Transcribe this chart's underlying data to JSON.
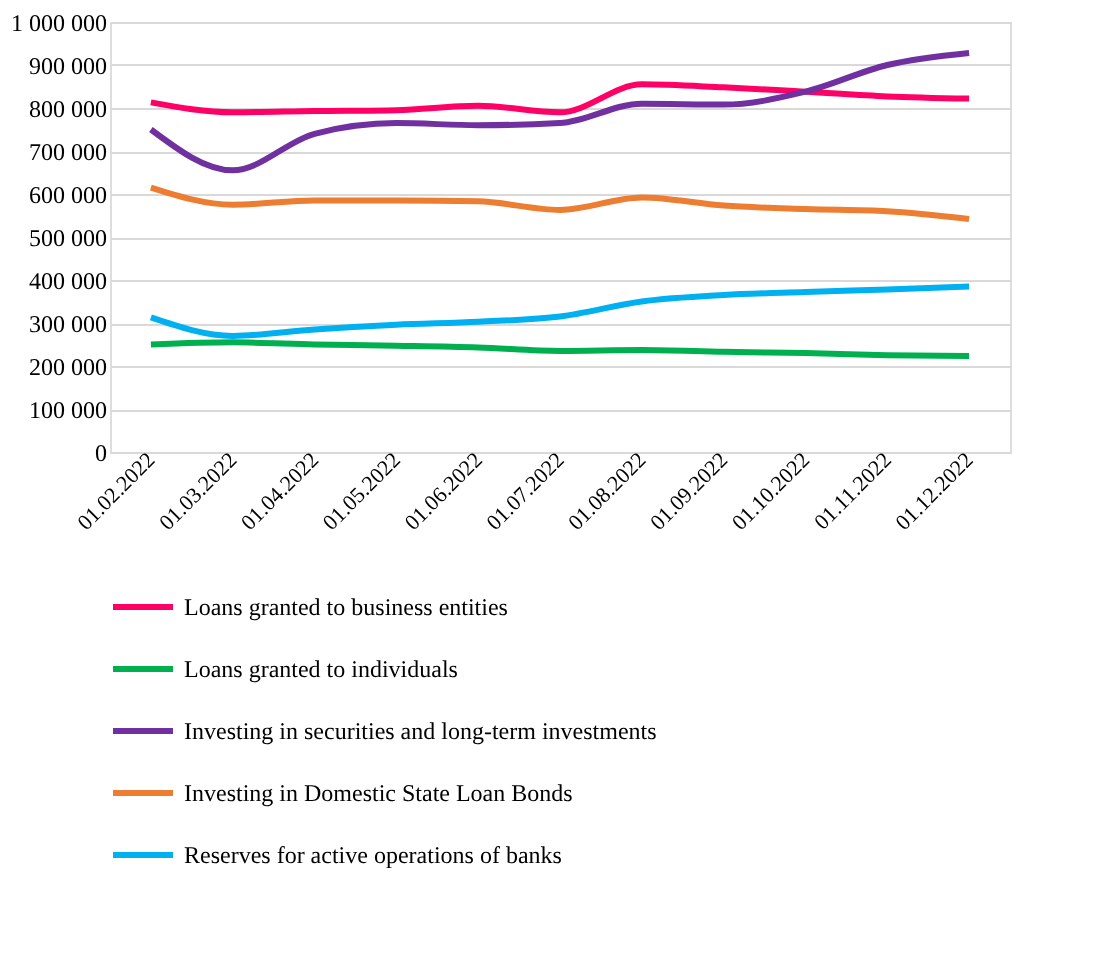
{
  "chart_data": {
    "type": "line",
    "categories": [
      "01.02.2022",
      "01.03.2022",
      "01.04.2022",
      "01.05.2022",
      "01.06.2022",
      "01.07.2022",
      "01.08.2022",
      "01.09.2022",
      "01.10.2022",
      "01.11.2022",
      "01.12.2022"
    ],
    "series": [
      {
        "name": "Loans granted to business entities",
        "color": "#ff0066",
        "values": [
          813000,
          790000,
          793000,
          795000,
          805000,
          790000,
          855000,
          848000,
          838000,
          827000,
          822000
        ]
      },
      {
        "name": "Loans granted to individuals",
        "color": "#00b050",
        "values": [
          250000,
          255000,
          250000,
          247000,
          243000,
          235000,
          237000,
          233000,
          230000,
          225000,
          223000
        ]
      },
      {
        "name": "Investing in securities and long-term investments",
        "color": "#7030a0",
        "values": [
          750000,
          655000,
          740000,
          765000,
          760000,
          765000,
          810000,
          808000,
          838000,
          900000,
          928000
        ]
      },
      {
        "name": "Investing in Domestic State Loan Bonds",
        "color": "#ed7d31",
        "values": [
          615000,
          575000,
          585000,
          585000,
          583000,
          563000,
          592000,
          573000,
          565000,
          560000,
          542000
        ]
      },
      {
        "name": "Reserves for active operations of banks",
        "color": "#00b0f0",
        "values": [
          313000,
          270000,
          285000,
          296000,
          303000,
          315000,
          350000,
          365000,
          372000,
          378000,
          385000
        ]
      }
    ],
    "ylim": [
      0,
      1000000
    ],
    "yticks": [
      {
        "value": 0,
        "label": "0"
      },
      {
        "value": 100000,
        "label": "100 000"
      },
      {
        "value": 200000,
        "label": "200 000"
      },
      {
        "value": 300000,
        "label": "300 000"
      },
      {
        "value": 400000,
        "label": "400 000"
      },
      {
        "value": 500000,
        "label": "500 000"
      },
      {
        "value": 600000,
        "label": "600 000"
      },
      {
        "value": 700000,
        "label": "700 000"
      },
      {
        "value": 800000,
        "label": "800 000"
      },
      {
        "value": 900000,
        "label": "900 000"
      },
      {
        "value": 1000000,
        "label": "1 000 000"
      }
    ],
    "grid": "y",
    "legend": "bottom",
    "marker": "none",
    "line_style": "solid"
  }
}
